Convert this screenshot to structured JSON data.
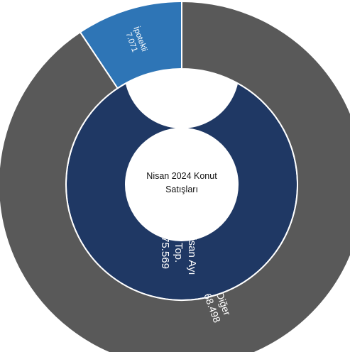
{
  "chart_data": {
    "type": "donut-sunburst",
    "center_label": [
      "Nisan 2024 Konut",
      "Satışları"
    ],
    "inner_ring": [
      {
        "lines": [
          "Nisan Ayı",
          "Top.",
          "75.569"
        ],
        "value": 75569,
        "color": "#1f3864"
      }
    ],
    "outer_ring": [
      {
        "lines": [
          "İpotekli",
          "7.071"
        ],
        "value": 7071,
        "color": "#2e75b6"
      },
      {
        "lines": [
          "Diğer",
          "68.498"
        ],
        "value": 68498,
        "color": "#595959"
      }
    ],
    "border_color": "#ffffff"
  }
}
